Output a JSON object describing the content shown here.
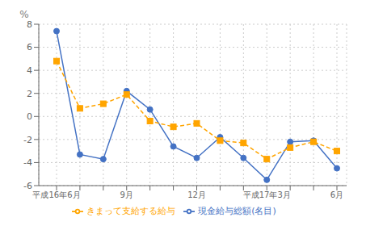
{
  "chart_data": {
    "type": "line",
    "ylabel": "%",
    "categories": [
      "平成16年6月",
      null,
      null,
      "9月",
      null,
      null,
      "12月",
      null,
      null,
      "平成17年3月",
      null,
      null,
      "6月"
    ],
    "series": [
      {
        "name": "現金給与総額(名目)",
        "color": "#4472c4",
        "marker": "circle",
        "line_style": "solid",
        "values": [
          7.4,
          -3.3,
          -3.7,
          2.2,
          0.6,
          -2.6,
          -3.6,
          -1.8,
          -3.6,
          -5.5,
          -2.2,
          -2.1,
          -4.5
        ]
      },
      {
        "name": "きまって支給する給与",
        "color": "#ffa500",
        "marker": "square",
        "line_style": "dashed",
        "values": [
          4.8,
          0.7,
          1.1,
          1.9,
          -0.4,
          -0.9,
          -0.6,
          -2.1,
          -2.3,
          -3.7,
          -2.7,
          -2.2,
          -3.0
        ]
      }
    ],
    "ylim": [
      -6,
      8
    ],
    "yticks": [
      -6,
      -4,
      -2,
      0,
      2,
      4,
      6,
      8
    ],
    "grid": true,
    "legend": "bottom"
  }
}
